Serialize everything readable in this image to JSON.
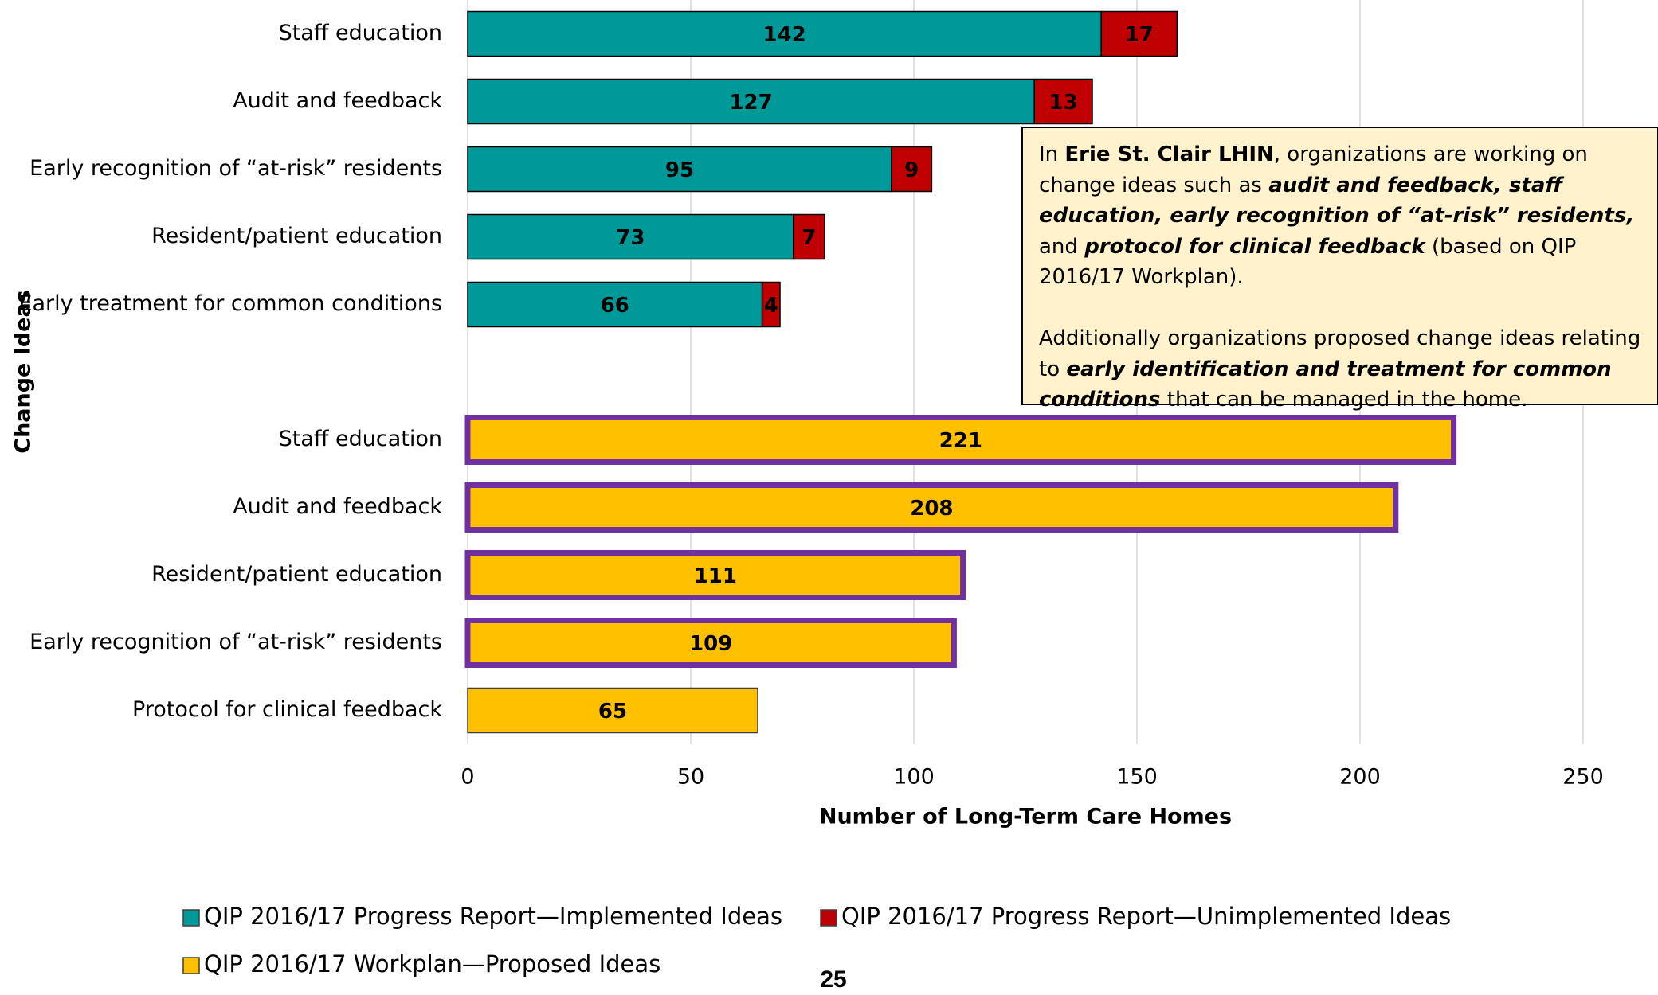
{
  "chart_data": {
    "type": "stacked_barh",
    "xlabel": "Number of Long-Term Care Homes",
    "ylabel": "Change Ideas",
    "categories": [
      "Staff education",
      "Audit and feedback",
      "Early recognition of “at-risk” residents",
      "Resident/patient education",
      "Early treatment for common conditions",
      null,
      "Staff education",
      "Audit and feedback",
      "Resident/patient education",
      "Early recognition of “at-risk” residents",
      "Protocol for clinical feedback"
    ],
    "series": [
      {
        "name": "QIP 2016/17 Progress Report—Implemented Ideas",
        "color": "#009999",
        "label_color": "#ffffff",
        "values": [
          142,
          127,
          95,
          73,
          66,
          null,
          null,
          null,
          null,
          null,
          null
        ]
      },
      {
        "name": "QIP 2016/17 Progress Report—Unimplemented Ideas",
        "color": "#c00000",
        "label_color": "#ffffff",
        "values": [
          17,
          13,
          9,
          7,
          4,
          null,
          null,
          null,
          null,
          null,
          null
        ]
      },
      {
        "name": "QIP 2016/17 Workplan—Proposed Ideas",
        "color": "#ffc000",
        "label_color": "#000000",
        "values": [
          null,
          null,
          null,
          null,
          null,
          null,
          221,
          208,
          111,
          109,
          65
        ],
        "edgecolors": [
          null,
          null,
          null,
          null,
          null,
          null,
          "#7030a0",
          "#7030a0",
          "#7030a0",
          "#7030a0",
          "#404040"
        ]
      }
    ],
    "xlim": [
      0,
      250
    ],
    "xticks": [
      0,
      50,
      100,
      150,
      200,
      250
    ],
    "grid": true,
    "legend": "bottom",
    "annotation": [
      [
        {
          "text": "In "
        },
        {
          "text": "Erie St. Clair LHIN",
          "style": "bold"
        },
        {
          "text": ", organizations are working on change ideas such as "
        },
        {
          "text": "audit and feedback, staff education, early recognition of “at-risk” residents,",
          "style": "bold-italic"
        },
        {
          "text": " and "
        },
        {
          "text": "protocol for clinical feedback",
          "style": "bold-italic"
        },
        {
          "text": " (based on QIP 2016/17 Workplan)."
        }
      ],
      [
        {
          "text": "Additionally organizations proposed change ideas relating to "
        },
        {
          "text": "early identification and treatment for common conditions",
          "style": "bold-italic"
        },
        {
          "text": " that can be managed in the home."
        }
      ]
    ],
    "page_number": "25"
  }
}
